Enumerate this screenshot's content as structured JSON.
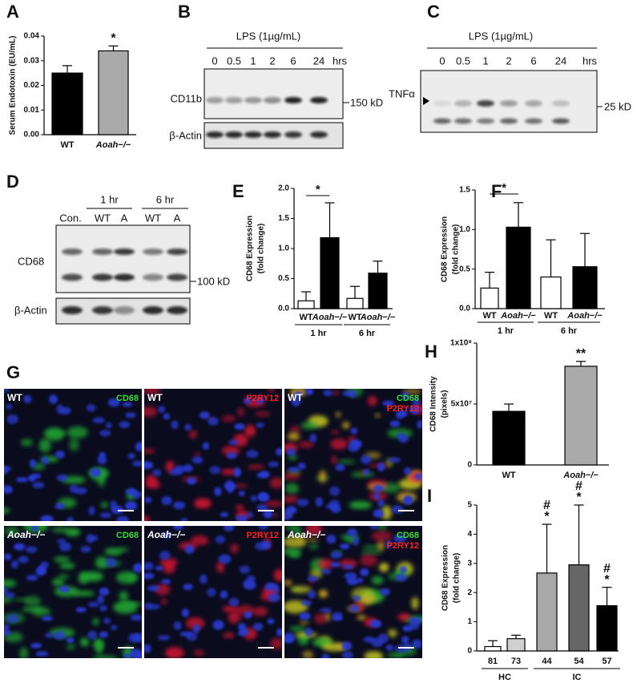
{
  "chart_data": [
    {
      "panel": "A",
      "type": "bar",
      "ylabel": [
        "Serum Endotoxin (EU/mL)"
      ],
      "categories": [
        "WT",
        "Aoah−/−"
      ],
      "values": [
        0.025,
        0.034
      ],
      "errors": [
        0.003,
        0.002
      ],
      "colors": [
        "#000000",
        "#aaaaaa"
      ],
      "annotations": [
        null,
        [
          "*"
        ]
      ],
      "ylim": [
        0,
        0.04
      ],
      "yticks": [
        {
          "value": 0,
          "label": "0.00"
        },
        {
          "value": 0.01,
          "label": "0.01"
        },
        {
          "value": 0.02,
          "label": "0.02"
        },
        {
          "value": 0.03,
          "label": "0.03"
        },
        {
          "value": 0.04,
          "label": "0.04"
        }
      ]
    },
    {
      "panel": "E",
      "type": "bar",
      "ylabel": [
        "CD68 Expression",
        "(fold change)"
      ],
      "categories": [
        "WT",
        "Aoah−/−",
        "WT",
        "Aoah−/−"
      ],
      "values": [
        0.13,
        1.18,
        0.17,
        0.59
      ],
      "errors": [
        0.15,
        0.58,
        0.2,
        0.2
      ],
      "colors": [
        "#ffffff",
        "#000000",
        "#ffffff",
        "#000000"
      ],
      "groups": [
        "1 hr",
        "6 hr"
      ],
      "significance": "*",
      "ylim": [
        0,
        2
      ],
      "yticks": [
        {
          "value": 0,
          "label": "0.0"
        },
        {
          "value": 0.5,
          "label": "0.5"
        },
        {
          "value": 1,
          "label": "1.0"
        },
        {
          "value": 1.5,
          "label": "1.5"
        },
        {
          "value": 2,
          "label": "2.0"
        }
      ]
    },
    {
      "panel": "F",
      "type": "bar",
      "ylabel": [
        "CD68 Expression",
        "(fold change)"
      ],
      "categories": [
        "WT",
        "Aoah−/−",
        "WT",
        "Aoah−/−"
      ],
      "values": [
        0.26,
        1.03,
        0.4,
        0.53
      ],
      "errors": [
        0.2,
        0.31,
        0.47,
        0.42
      ],
      "colors": [
        "#ffffff",
        "#000000",
        "#ffffff",
        "#000000"
      ],
      "groups": [
        "1 hr",
        "6 hr"
      ],
      "significance": "*",
      "ylim": [
        0,
        1.5
      ],
      "yticks": [
        {
          "value": 0,
          "label": "0.0"
        },
        {
          "value": 0.5,
          "label": "0.5"
        },
        {
          "value": 1,
          "label": "1.0"
        },
        {
          "value": 1.5,
          "label": "1.5"
        }
      ]
    },
    {
      "panel": "H",
      "type": "bar",
      "ylabel": [
        "CD68 Intensity",
        "(pixels)"
      ],
      "categories": [
        "WT",
        "Aoah−/−"
      ],
      "values": [
        44000000,
        81000000
      ],
      "errors": [
        6000000,
        4000000
      ],
      "colors": [
        "#000000",
        "#aaaaaa"
      ],
      "annotations": [
        null,
        [
          "**"
        ]
      ],
      "ylim": [
        0,
        100000000
      ],
      "yticks": [
        0,
        {
          "value": 50000000,
          "label": "5x10⁷"
        },
        {
          "value": 100000000,
          "label": "1x10⁸"
        }
      ]
    },
    {
      "panel": "I",
      "type": "bar",
      "ylabel": [
        "CD68 Expression",
        "(fold change)"
      ],
      "categories": [
        "81",
        "73",
        "44",
        "54",
        "57"
      ],
      "values": [
        0.15,
        0.42,
        2.67,
        2.95,
        1.55
      ],
      "errors": [
        0.2,
        0.12,
        1.67,
        2.05,
        0.63
      ],
      "colors": [
        "#ffffff",
        "#d0d0d0",
        "#a8a8a8",
        "#666666",
        "#000000"
      ],
      "groups": [
        "HC",
        "IC"
      ],
      "annotations": [
        null,
        null,
        [
          "#",
          "*"
        ],
        [
          "#",
          "*"
        ],
        [
          "#",
          "*"
        ]
      ],
      "ylim": [
        0,
        5
      ],
      "yticks": [
        0,
        1,
        2,
        3,
        4,
        5
      ]
    }
  ],
  "blots": [
    {
      "panel": "B",
      "title": "LPS (1µg/mL)",
      "lanes": [
        "0",
        "0.5",
        "1",
        "2",
        "6",
        "24"
      ],
      "unit": "hrs",
      "rows": [
        "CD11b",
        "β-Actin"
      ],
      "marker": "150 kD"
    },
    {
      "panel": "C",
      "title": "LPS (1µg/mL)",
      "lanes": [
        "0",
        "0.5",
        "1",
        "2",
        "6",
        "24"
      ],
      "unit": "hrs",
      "rows": [
        "TNFα"
      ],
      "marker": "25 kD"
    },
    {
      "panel": "D",
      "conditions": [
        "1 hr",
        "6 hr"
      ],
      "lanes": [
        "Con.",
        "WT",
        "A",
        "WT",
        "A"
      ],
      "rows": [
        "CD68",
        "β-Actin"
      ],
      "marker": "100 kD"
    }
  ],
  "micrographs": {
    "panel": "G",
    "genotypes": [
      "WT",
      "Aoah−/−"
    ],
    "channels": [
      [
        "CD68"
      ],
      [
        "P2RY12"
      ],
      [
        "CD68",
        "P2RY12"
      ]
    ]
  }
}
